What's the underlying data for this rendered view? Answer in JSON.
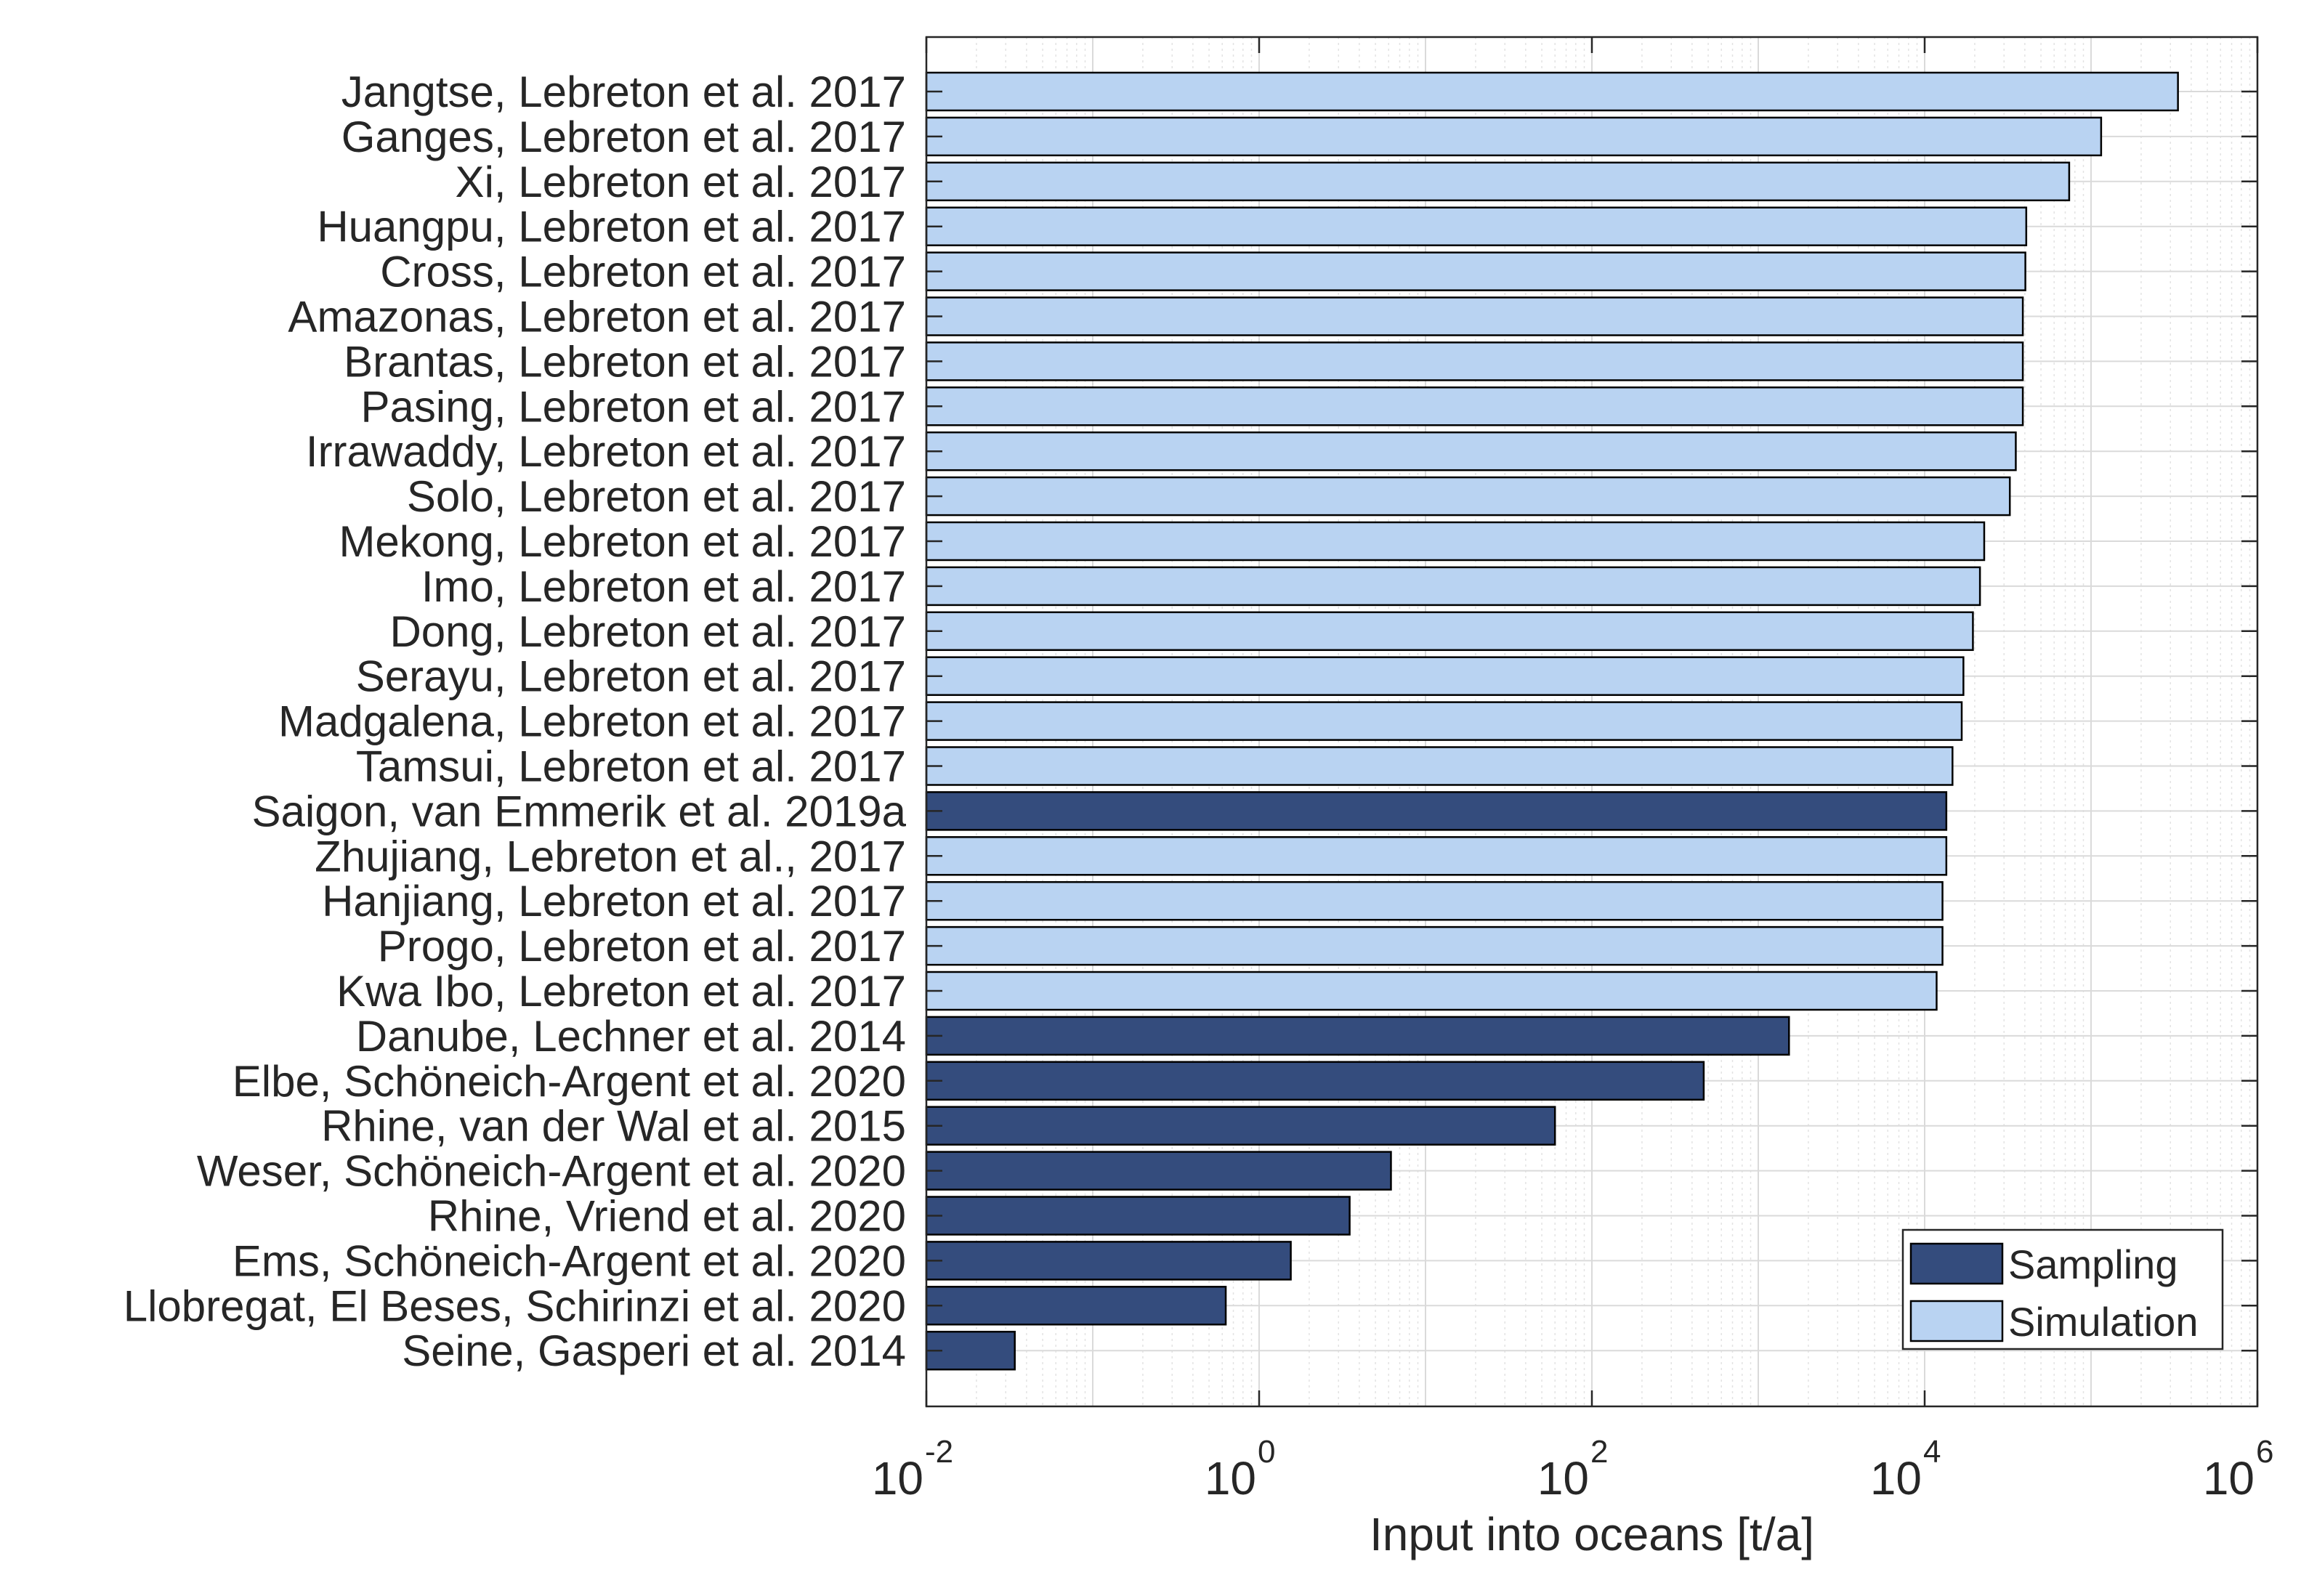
{
  "chart_data": {
    "type": "bar",
    "orientation": "horizontal",
    "xscale": "log",
    "xlabel": "Input into oceans [t/a]",
    "xlim": [
      0.01,
      1000000
    ],
    "xticks": [
      {
        "value": 0.01,
        "base": "10",
        "exp": "-2"
      },
      {
        "value": 1,
        "base": "10",
        "exp": "0"
      },
      {
        "value": 100,
        "base": "10",
        "exp": "2"
      },
      {
        "value": 10000,
        "base": "10",
        "exp": "4"
      },
      {
        "value": 1000000,
        "base": "10",
        "exp": "6"
      }
    ],
    "grid": true,
    "legend_position": "bottom-right",
    "colors": {
      "Sampling": "#344c7d",
      "Simulation": "#b9d3f2"
    },
    "legend": [
      {
        "label": "Sampling"
      },
      {
        "label": "Simulation"
      }
    ],
    "bars": [
      {
        "label": "Jangtse, Lebreton et al. 2017",
        "value": 333000,
        "series": "Simulation"
      },
      {
        "label": "Ganges, Lebreton et al. 2017",
        "value": 115000,
        "series": "Simulation"
      },
      {
        "label": "Xi, Lebreton et al. 2017",
        "value": 73900,
        "series": "Simulation"
      },
      {
        "label": "Huangpu, Lebreton et al. 2017",
        "value": 40800,
        "series": "Simulation"
      },
      {
        "label": "Cross, Lebreton et al. 2017",
        "value": 40300,
        "series": "Simulation"
      },
      {
        "label": "Amazonas, Lebreton et al. 2017",
        "value": 38900,
        "series": "Simulation"
      },
      {
        "label": "Brantas, Lebreton et al. 2017",
        "value": 38900,
        "series": "Simulation"
      },
      {
        "label": "Pasing, Lebreton et al. 2017",
        "value": 38900,
        "series": "Simulation"
      },
      {
        "label": "Irrawaddy, Lebreton et al. 2017",
        "value": 35300,
        "series": "Simulation"
      },
      {
        "label": "Solo, Lebreton et al. 2017",
        "value": 32500,
        "series": "Simulation"
      },
      {
        "label": "Mekong, Lebreton et al. 2017",
        "value": 22800,
        "series": "Simulation"
      },
      {
        "label": "Imo, Lebreton et al. 2017",
        "value": 21500,
        "series": "Simulation"
      },
      {
        "label": "Dong, Lebreton et al. 2017",
        "value": 19500,
        "series": "Simulation"
      },
      {
        "label": "Serayu, Lebreton et al. 2017",
        "value": 17100,
        "series": "Simulation"
      },
      {
        "label": "Madgalena, Lebreton et al. 2017",
        "value": 16700,
        "series": "Simulation"
      },
      {
        "label": "Tamsui, Lebreton et al. 2017",
        "value": 14700,
        "series": "Simulation"
      },
      {
        "label": "Saigon, van Emmerik et al. 2019a",
        "value": 13500,
        "series": "Sampling"
      },
      {
        "label": "Zhujiang, Lebreton et al., 2017",
        "value": 13500,
        "series": "Simulation"
      },
      {
        "label": "Hanjiang, Lebreton et al. 2017",
        "value": 12800,
        "series": "Simulation"
      },
      {
        "label": "Progo, Lebreton et al. 2017",
        "value": 12800,
        "series": "Simulation"
      },
      {
        "label": "Kwa Ibo, Lebreton et al. 2017",
        "value": 11800,
        "series": "Simulation"
      },
      {
        "label": "Danube, Lechner et al. 2014",
        "value": 1530,
        "series": "Sampling"
      },
      {
        "label": "Elbe, Schöneich-Argent et al. 2020",
        "value": 470,
        "series": "Sampling"
      },
      {
        "label": "Rhine, van der Wal et al. 2015",
        "value": 60,
        "series": "Sampling"
      },
      {
        "label": "Weser, Schöneich-Argent et al. 2020",
        "value": 6.2,
        "series": "Sampling"
      },
      {
        "label": "Rhine, Vriend et al. 2020",
        "value": 3.5,
        "series": "Sampling"
      },
      {
        "label": "Ems, Schöneich-Argent et al. 2020",
        "value": 1.55,
        "series": "Sampling"
      },
      {
        "label": "Llobregat, El Beses, Schirinzi et al. 2020",
        "value": 0.63,
        "series": "Sampling"
      },
      {
        "label": "Seine, Gasperi et al. 2014",
        "value": 0.034,
        "series": "Sampling"
      }
    ]
  }
}
